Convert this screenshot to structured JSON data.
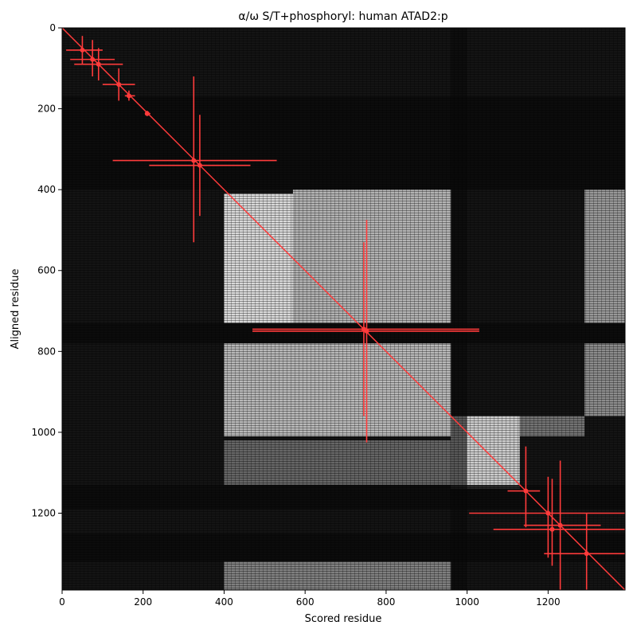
{
  "chart_data": {
    "type": "heatmap",
    "title": "α/ω S/T+phosphoryl: human ATAD2:p",
    "xlabel": "Scored residue",
    "ylabel": "Aligned residue",
    "xlim": [
      0,
      1390
    ],
    "ylim": [
      1390,
      0
    ],
    "xticks": [
      0,
      200,
      400,
      600,
      800,
      1000,
      1200
    ],
    "yticks": [
      0,
      200,
      400,
      600,
      800,
      1000,
      1200
    ],
    "colormap": "grayscale",
    "grid": false,
    "regions": [
      {
        "x": [
          400,
          570
        ],
        "y": [
          410,
          730
        ],
        "intensity": 0.85
      },
      {
        "x": [
          570,
          960
        ],
        "y": [
          400,
          730
        ],
        "intensity": 0.7
      },
      {
        "x": [
          400,
          960
        ],
        "y": [
          780,
          1010
        ],
        "intensity": 0.72
      },
      {
        "x": [
          960,
          1130
        ],
        "y": [
          960,
          1140
        ],
        "intensity": 0.8
      },
      {
        "x": [
          1290,
          1390
        ],
        "y": [
          400,
          730
        ],
        "intensity": 0.6
      },
      {
        "x": [
          1290,
          1390
        ],
        "y": [
          780,
          960
        ],
        "intensity": 0.55
      },
      {
        "x": [
          400,
          960
        ],
        "y": [
          1020,
          1130
        ],
        "intensity": 0.4
      },
      {
        "x": [
          400,
          960
        ],
        "y": [
          1320,
          1390
        ],
        "intensity": 0.5
      },
      {
        "x": [
          1130,
          1290
        ],
        "y": [
          960,
          1010
        ],
        "intensity": 0.45
      }
    ],
    "dark_bands": [
      {
        "axis": "y",
        "range": [
          730,
          780
        ]
      },
      {
        "axis": "y",
        "range": [
          170,
          400
        ]
      },
      {
        "axis": "y",
        "range": [
          1130,
          1190
        ]
      },
      {
        "axis": "y",
        "range": [
          1250,
          1320
        ]
      },
      {
        "axis": "x",
        "range": [
          960,
          1000
        ]
      }
    ],
    "diagonal": {
      "color": "#ff3b3b",
      "from": [
        0,
        0
      ],
      "to": [
        1390,
        1390
      ]
    },
    "crosshairs": [
      {
        "x": 50,
        "y": 55,
        "h": [
          10,
          100
        ],
        "v": [
          20,
          90
        ]
      },
      {
        "x": 75,
        "y": 78,
        "h": [
          20,
          130
        ],
        "v": [
          30,
          120
        ]
      },
      {
        "x": 90,
        "y": 90,
        "h": [
          30,
          150
        ],
        "v": [
          50,
          130
        ]
      },
      {
        "x": 140,
        "y": 140,
        "h": [
          100,
          180
        ],
        "v": [
          100,
          180
        ]
      },
      {
        "x": 165,
        "y": 168,
        "h": [
          155,
          180
        ],
        "v": [
          155,
          180
        ]
      },
      {
        "x": 210,
        "y": 212,
        "h": [
          205,
          218
        ],
        "v": [
          205,
          218
        ]
      },
      {
        "x": 325,
        "y": 328,
        "h": [
          125,
          530
        ],
        "v": [
          120,
          530
        ]
      },
      {
        "x": 340,
        "y": 340,
        "h": [
          215,
          465
        ],
        "v": [
          215,
          465
        ]
      },
      {
        "x": 745,
        "y": 745,
        "h": [
          470,
          1030
        ],
        "v": [
          530,
          960
        ]
      },
      {
        "x": 752,
        "y": 750,
        "h": [
          470,
          1030
        ],
        "v": [
          475,
          1025
        ]
      },
      {
        "x": 1145,
        "y": 1145,
        "h": [
          1100,
          1180
        ],
        "v": [
          1035,
          1235
        ]
      },
      {
        "x": 1200,
        "y": 1200,
        "h": [
          1005,
          1390
        ],
        "v": [
          1110,
          1310
        ]
      },
      {
        "x": 1210,
        "y": 1240,
        "h": [
          1065,
          1390
        ],
        "v": [
          1115,
          1330
        ]
      },
      {
        "x": 1230,
        "y": 1230,
        "h": [
          1140,
          1330
        ],
        "v": [
          1070,
          1390
        ]
      },
      {
        "x": 1295,
        "y": 1300,
        "h": [
          1190,
          1390
        ],
        "v": [
          1200,
          1390
        ]
      }
    ]
  }
}
